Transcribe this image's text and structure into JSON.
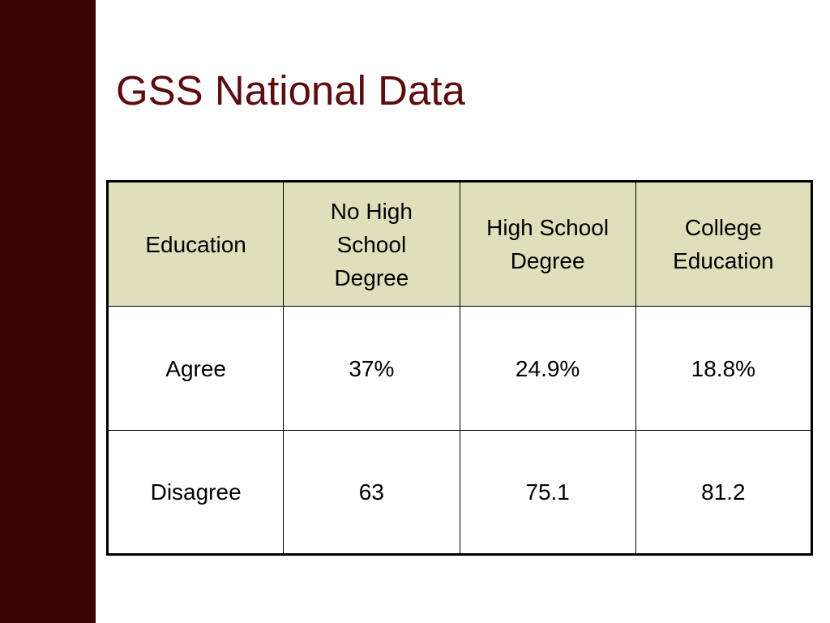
{
  "title": "GSS National Data",
  "table": {
    "header": [
      "Education",
      "No High\nSchool\nDegree",
      "High School\nDegree",
      "College\nEducation"
    ],
    "rows": [
      [
        "Agree",
        "37%",
        "24.9%",
        "18.8%"
      ],
      [
        "Disagree",
        "63",
        "75.1",
        "81.2"
      ]
    ]
  }
}
